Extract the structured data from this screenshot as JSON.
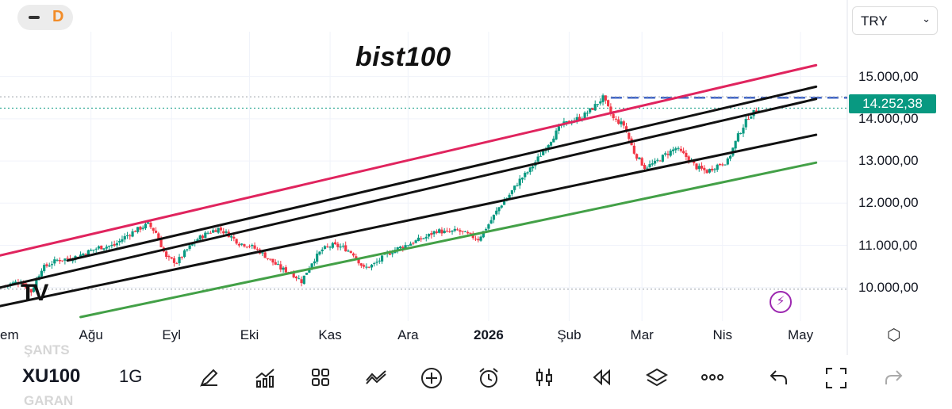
{
  "top_bar": {
    "collapse_icon": "minus-icon",
    "d_badge": "D",
    "currency": "TRY"
  },
  "chart_data": {
    "type": "candlestick",
    "title": "bist100",
    "symbol": "XU100",
    "interval": "1G",
    "currency": "TRY",
    "last_price_label": "14.252,38",
    "ylim": [
      9300,
      15500
    ],
    "y_ticks": [
      10000,
      11000,
      12000,
      13000,
      14000,
      15000
    ],
    "y_tick_labels": [
      "10.000,00",
      "11.000,00",
      "12.000,00",
      "13.000,00",
      "14.000,00",
      "15.000,00"
    ],
    "x_tick_labels": [
      "em",
      "Ağu",
      "Eyl",
      "Eki",
      "Kas",
      "Ara",
      "2026",
      "Şub",
      "Mar",
      "Nis",
      "May"
    ],
    "x_tick_bold": [
      false,
      false,
      false,
      false,
      false,
      false,
      true,
      false,
      false,
      false,
      false
    ],
    "x_tick_days": [
      -2,
      33,
      64,
      94,
      125,
      155,
      186,
      217,
      245,
      276,
      306
    ],
    "x_range_days": [
      -2,
      324
    ],
    "trend_lines": [
      {
        "name": "upper-channel",
        "color": "#e0245e",
        "p1": [
          -2,
          10760
        ],
        "p2": [
          312,
          15270
        ]
      },
      {
        "name": "parallel-1",
        "color": "#111111",
        "p1": [
          24,
          10640
        ],
        "p2": [
          312,
          14760
        ]
      },
      {
        "name": "parallel-2",
        "color": "#111111",
        "p1": [
          -2,
          10000
        ],
        "p2": [
          312,
          14470
        ]
      },
      {
        "name": "parallel-3",
        "color": "#111111",
        "p1": [
          -2,
          9560
        ],
        "p2": [
          312,
          13620
        ]
      },
      {
        "name": "lower-support",
        "color": "#43a047",
        "p1": [
          29,
          9300
        ],
        "p2": [
          312,
          12960
        ]
      }
    ],
    "horizontal_levels": [
      {
        "name": "resistance-level",
        "value": 14500,
        "style": "dashed",
        "color": "#3f64c7",
        "from_day": 233
      },
      {
        "name": "current-price-level",
        "value": 14252,
        "style": "dotted",
        "color": "#089981",
        "from_day": -2
      },
      {
        "name": "top-dotted-level",
        "value": 14520,
        "style": "dotted",
        "color": "#9aa0a6",
        "from_day": -2
      },
      {
        "name": "bottom-dotted-level",
        "value": 9960,
        "style": "dotted",
        "color": "#9aa0a6",
        "from_day": -2
      }
    ],
    "anchors": [
      [
        0,
        10050
      ],
      [
        6,
        10150
      ],
      [
        10,
        9900
      ],
      [
        14,
        10450
      ],
      [
        20,
        10650
      ],
      [
        26,
        10700
      ],
      [
        30,
        10800
      ],
      [
        36,
        10950
      ],
      [
        42,
        11000
      ],
      [
        46,
        11200
      ],
      [
        50,
        11350
      ],
      [
        55,
        11500
      ],
      [
        58,
        11300
      ],
      [
        62,
        10700
      ],
      [
        66,
        10600
      ],
      [
        70,
        10900
      ],
      [
        74,
        11150
      ],
      [
        78,
        11300
      ],
      [
        82,
        11400
      ],
      [
        86,
        11250
      ],
      [
        90,
        11050
      ],
      [
        94,
        11000
      ],
      [
        98,
        10850
      ],
      [
        102,
        10650
      ],
      [
        106,
        10450
      ],
      [
        110,
        10350
      ],
      [
        114,
        10150
      ],
      [
        118,
        10600
      ],
      [
        122,
        10900
      ],
      [
        126,
        11000
      ],
      [
        130,
        10950
      ],
      [
        134,
        10800
      ],
      [
        138,
        10450
      ],
      [
        142,
        10550
      ],
      [
        146,
        10750
      ],
      [
        150,
        10900
      ],
      [
        154,
        11000
      ],
      [
        158,
        11100
      ],
      [
        162,
        11200
      ],
      [
        166,
        11350
      ],
      [
        170,
        11300
      ],
      [
        174,
        11350
      ],
      [
        178,
        11250
      ],
      [
        182,
        11150
      ],
      [
        186,
        11500
      ],
      [
        190,
        11900
      ],
      [
        194,
        12200
      ],
      [
        198,
        12550
      ],
      [
        202,
        12800
      ],
      [
        206,
        13150
      ],
      [
        210,
        13500
      ],
      [
        214,
        13850
      ],
      [
        218,
        13950
      ],
      [
        222,
        14050
      ],
      [
        226,
        14250
      ],
      [
        230,
        14500
      ],
      [
        234,
        14000
      ],
      [
        238,
        13850
      ],
      [
        242,
        13200
      ],
      [
        246,
        12850
      ],
      [
        250,
        12950
      ],
      [
        254,
        13150
      ],
      [
        258,
        13300
      ],
      [
        262,
        13100
      ],
      [
        266,
        12850
      ],
      [
        270,
        12750
      ],
      [
        274,
        12900
      ],
      [
        278,
        13000
      ],
      [
        282,
        13600
      ],
      [
        286,
        14050
      ],
      [
        290,
        14252
      ]
    ],
    "up_color": "#089981",
    "down_color": "#f23645"
  },
  "bottom_bar": {
    "ghost_top": "ŞANTS",
    "ghost_bottom": "GARAN",
    "tools": [
      {
        "name": "draw-tool",
        "icon": "pencil-icon"
      },
      {
        "name": "indicators",
        "icon": "chart-indicator-icon"
      },
      {
        "name": "layouts",
        "icon": "grid-icon"
      },
      {
        "name": "compare",
        "icon": "compare-icon"
      },
      {
        "name": "add",
        "icon": "plus-circle-icon"
      },
      {
        "name": "alert",
        "icon": "alarm-clock-icon"
      },
      {
        "name": "chart-type",
        "icon": "candles-icon"
      },
      {
        "name": "replay",
        "icon": "rewind-icon"
      },
      {
        "name": "objects",
        "icon": "layers-icon"
      },
      {
        "name": "more",
        "icon": "more-icon"
      },
      {
        "name": "undo",
        "icon": "undo-icon"
      },
      {
        "name": "fullscreen",
        "icon": "fullscreen-icon"
      },
      {
        "name": "redo",
        "icon": "redo-icon"
      }
    ]
  },
  "overlay": {
    "logo": "TV",
    "bolt_icon": "lightning-icon",
    "settings_icon": "hexagon-settings-icon"
  }
}
